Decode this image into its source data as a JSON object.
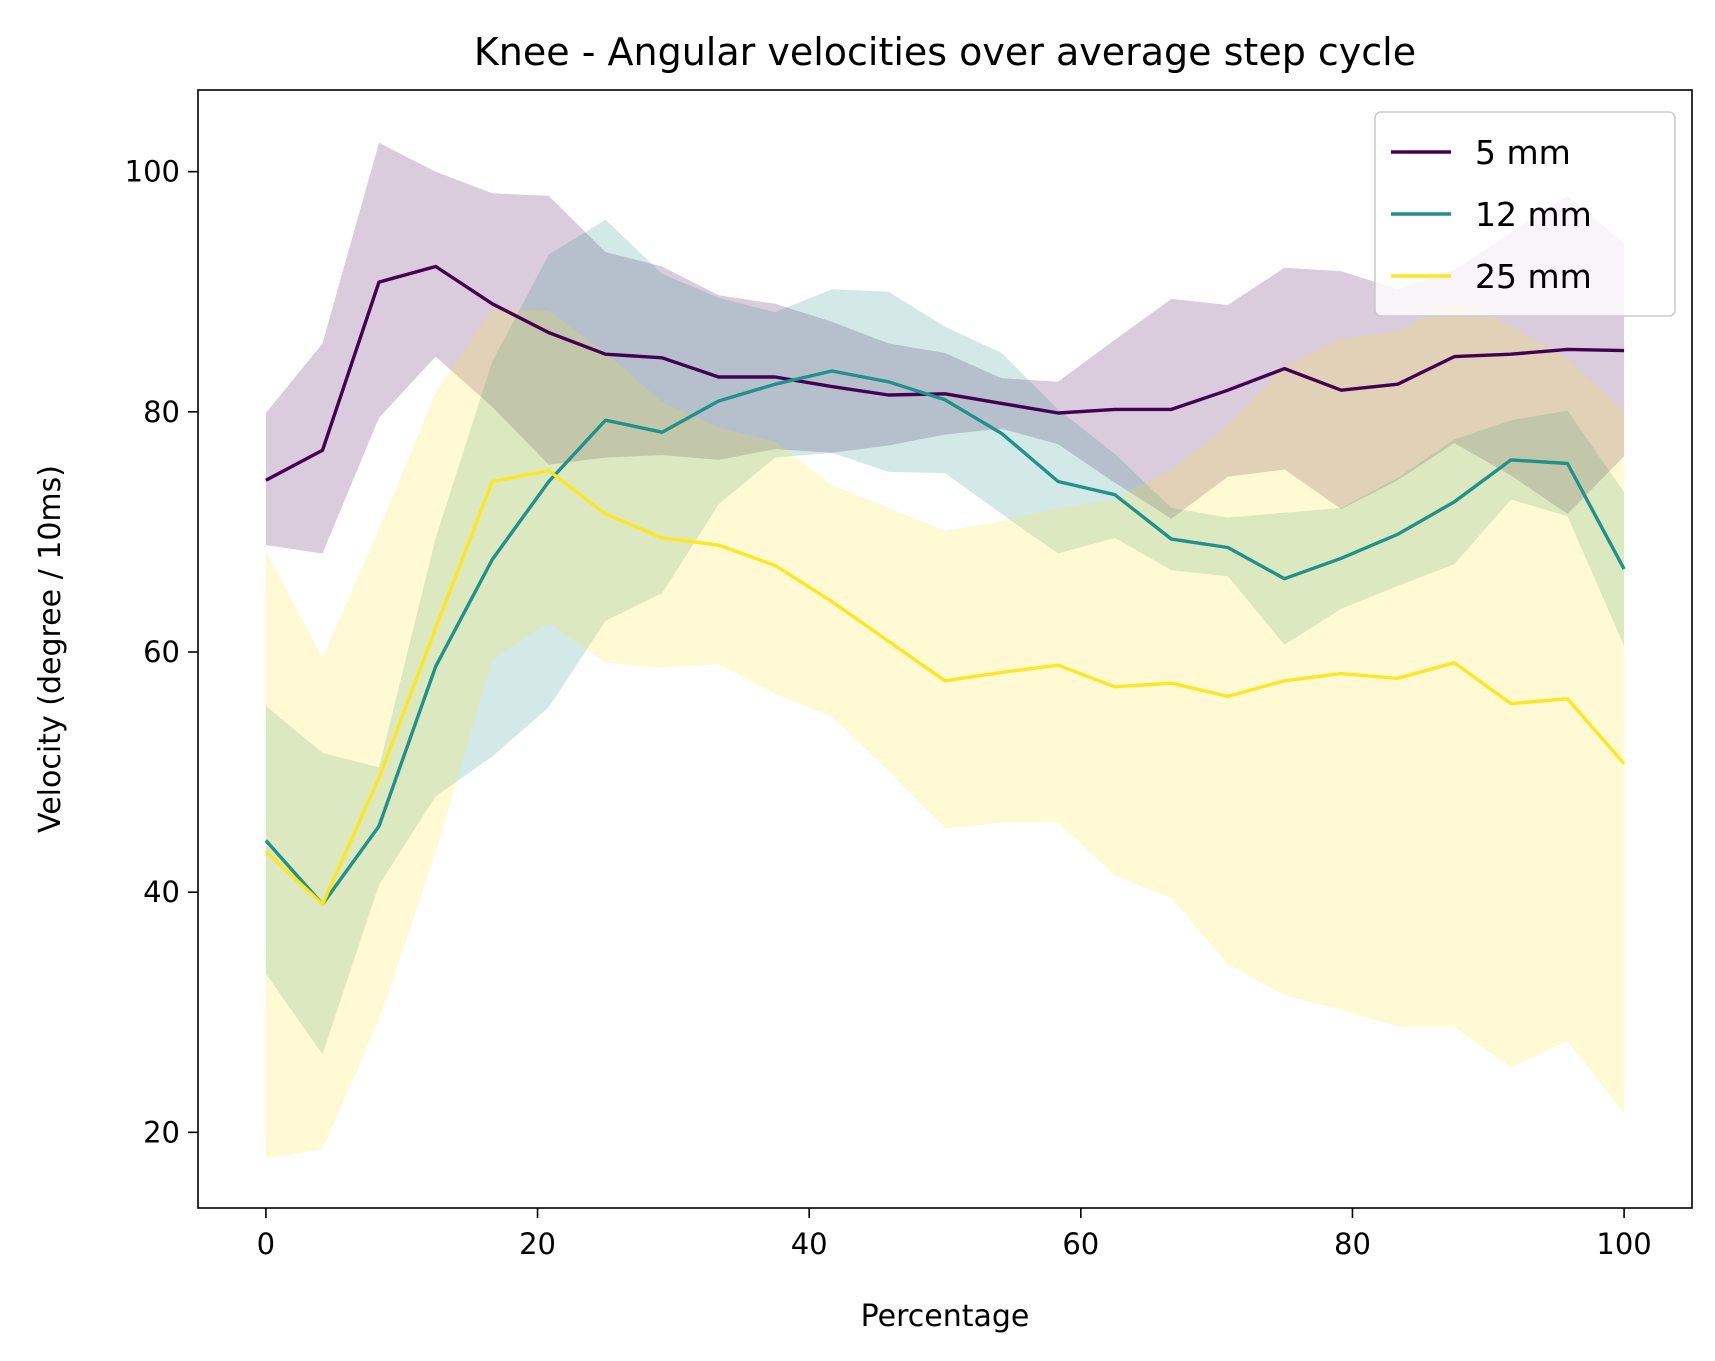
{
  "chart_data": {
    "type": "line",
    "title": "Knee  - Angular velocities over average step cycle",
    "xlabel": "Percentage",
    "ylabel": "Velocity (degree / 10ms)",
    "xlim": [
      -5,
      105
    ],
    "ylim": [
      13.7,
      106.8
    ],
    "xticks": [
      0,
      20,
      40,
      60,
      80,
      100
    ],
    "yticks": [
      20,
      40,
      60,
      80,
      100
    ],
    "grid": false,
    "legend_position": "top-right",
    "x": [
      0,
      4.17,
      8.33,
      12.5,
      16.67,
      20.83,
      25,
      29.17,
      33.33,
      37.5,
      41.67,
      45.83,
      50,
      54.17,
      58.33,
      62.5,
      66.67,
      70.83,
      75,
      79.17,
      83.33,
      87.5,
      91.67,
      95.83,
      100
    ],
    "series": [
      {
        "name": "5 mm",
        "color": "#440154",
        "values": [
          74.3,
          76.8,
          90.8,
          92.1,
          89.0,
          86.6,
          84.8,
          84.5,
          82.9,
          82.9,
          82.1,
          81.4,
          81.5,
          80.7,
          79.9,
          80.2,
          80.2,
          81.8,
          83.6,
          81.8,
          82.3,
          84.6,
          84.8,
          85.2,
          85.1
        ],
        "upper": [
          79.9,
          85.7,
          102.4,
          100.0,
          98.2,
          98.0,
          93.3,
          92.1,
          89.7,
          89.0,
          87.5,
          85.7,
          84.9,
          82.8,
          82.5,
          86.0,
          89.4,
          88.9,
          92.0,
          91.7,
          90.2,
          91.8,
          94.9,
          98.0,
          94.0
        ],
        "lower": [
          68.9,
          68.2,
          79.5,
          84.6,
          80.4,
          75.6,
          76.2,
          76.4,
          76.0,
          76.9,
          76.6,
          77.2,
          78.1,
          78.6,
          77.3,
          74.1,
          71.1,
          74.6,
          75.2,
          71.9,
          74.3,
          77.4,
          74.7,
          71.5,
          76.3
        ]
      },
      {
        "name": "12 mm",
        "color": "#21918c",
        "values": [
          44.3,
          39.0,
          45.5,
          58.8,
          67.7,
          74.2,
          79.3,
          78.3,
          80.9,
          82.3,
          83.4,
          82.5,
          81.0,
          78.2,
          74.2,
          73.1,
          69.4,
          68.7,
          66.1,
          67.8,
          69.8,
          72.5,
          76.0,
          75.7,
          66.9
        ],
        "upper": [
          55.5,
          51.6,
          50.4,
          69.5,
          84.2,
          93.1,
          96.0,
          91.5,
          89.5,
          88.3,
          90.2,
          90.0,
          87.1,
          84.9,
          80.2,
          76.5,
          72.0,
          71.2,
          71.6,
          72.0,
          74.5,
          77.7,
          79.3,
          80.1,
          73.3
        ],
        "lower": [
          33.2,
          26.5,
          40.6,
          48.0,
          51.3,
          55.4,
          62.6,
          64.9,
          72.3,
          76.2,
          76.6,
          75.0,
          74.9,
          71.5,
          68.2,
          69.5,
          66.8,
          66.3,
          60.6,
          63.6,
          65.5,
          67.3,
          72.7,
          71.3,
          60.5
        ]
      },
      {
        "name": "25 mm",
        "color": "#fde725",
        "values": [
          43.4,
          39.0,
          49.5,
          62.0,
          74.2,
          75.1,
          71.5,
          69.5,
          68.9,
          67.2,
          64.2,
          60.9,
          57.6,
          58.3,
          58.9,
          57.1,
          57.4,
          56.3,
          57.6,
          58.2,
          57.8,
          59.1,
          55.7,
          56.1,
          50.7
        ],
        "upper": [
          68.4,
          59.5,
          70.2,
          81.6,
          88.6,
          88.4,
          84.9,
          80.8,
          78.7,
          77.5,
          73.9,
          72.0,
          70.1,
          70.9,
          72.0,
          72.7,
          75.2,
          78.9,
          83.8,
          86.1,
          86.7,
          89.2,
          87.2,
          84.4,
          80.1
        ],
        "lower": [
          17.8,
          18.6,
          29.4,
          43.3,
          59.4,
          62.4,
          59.1,
          58.7,
          59.0,
          56.5,
          54.6,
          50.1,
          45.3,
          45.8,
          45.8,
          41.4,
          39.5,
          34.0,
          31.4,
          30.2,
          28.8,
          28.8,
          25.4,
          27.6,
          21.6
        ]
      }
    ]
  }
}
